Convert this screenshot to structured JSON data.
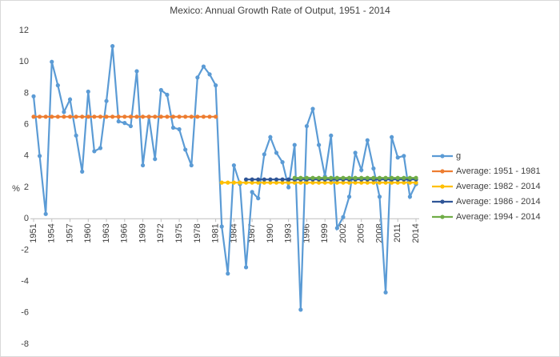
{
  "chart_data": {
    "type": "line",
    "title": "Mexico: Annual Growth Rate of Output, 1951 - 2014",
    "y_label": "%",
    "x": [
      1951,
      1952,
      1953,
      1954,
      1955,
      1956,
      1957,
      1958,
      1959,
      1960,
      1961,
      1962,
      1963,
      1964,
      1965,
      1966,
      1967,
      1968,
      1969,
      1970,
      1971,
      1972,
      1973,
      1974,
      1975,
      1976,
      1977,
      1978,
      1979,
      1980,
      1981,
      1982,
      1983,
      1984,
      1985,
      1986,
      1987,
      1988,
      1989,
      1990,
      1991,
      1992,
      1993,
      1994,
      1995,
      1996,
      1997,
      1998,
      1999,
      2000,
      2001,
      2002,
      2003,
      2004,
      2005,
      2006,
      2007,
      2008,
      2009,
      2010,
      2011,
      2012,
      2013,
      2014
    ],
    "xlim": [
      1951,
      2014
    ],
    "xticks": [
      1951,
      1954,
      1957,
      1960,
      1963,
      1966,
      1969,
      1972,
      1975,
      1978,
      1981,
      1984,
      1987,
      1990,
      1993,
      1996,
      1999,
      2002,
      2005,
      2008,
      2011,
      2014
    ],
    "ylim": [
      -8,
      12
    ],
    "yticks": [
      -8,
      -6,
      -4,
      -2,
      0,
      2,
      4,
      6,
      8,
      10,
      12
    ],
    "grid": false,
    "legend": "right",
    "series": [
      {
        "name": "g",
        "color": "#5b9bd5",
        "values": [
          7.8,
          4.0,
          0.3,
          10.0,
          8.5,
          6.8,
          7.6,
          5.3,
          3.0,
          8.1,
          4.3,
          4.5,
          7.5,
          11.0,
          6.2,
          6.1,
          5.9,
          9.4,
          3.4,
          6.5,
          3.8,
          8.2,
          7.9,
          5.8,
          5.7,
          4.4,
          3.4,
          9.0,
          9.7,
          9.2,
          8.5,
          -0.5,
          -3.5,
          3.4,
          2.2,
          -3.1,
          1.7,
          1.3,
          4.1,
          5.2,
          4.2,
          3.6,
          2.0,
          4.7,
          -5.8,
          5.9,
          7.0,
          4.7,
          2.7,
          5.3,
          -0.6,
          0.1,
          1.4,
          4.2,
          3.1,
          5.0,
          3.2,
          1.4,
          -4.7,
          5.2,
          3.9,
          4.0,
          1.4,
          2.2
        ]
      },
      {
        "name": "Average: 1951 - 1981",
        "color": "#ed7d31",
        "values": [
          6.5,
          6.5,
          6.5,
          6.5,
          6.5,
          6.5,
          6.5,
          6.5,
          6.5,
          6.5,
          6.5,
          6.5,
          6.5,
          6.5,
          6.5,
          6.5,
          6.5,
          6.5,
          6.5,
          6.5,
          6.5,
          6.5,
          6.5,
          6.5,
          6.5,
          6.5,
          6.5,
          6.5,
          6.5,
          6.5,
          6.5,
          null,
          null,
          null,
          null,
          null,
          null,
          null,
          null,
          null,
          null,
          null,
          null,
          null,
          null,
          null,
          null,
          null,
          null,
          null,
          null,
          null,
          null,
          null,
          null,
          null,
          null,
          null,
          null,
          null,
          null,
          null,
          null,
          null
        ]
      },
      {
        "name": "Average: 1982 - 2014",
        "color": "#ffc000",
        "values": [
          null,
          null,
          null,
          null,
          null,
          null,
          null,
          null,
          null,
          null,
          null,
          null,
          null,
          null,
          null,
          null,
          null,
          null,
          null,
          null,
          null,
          null,
          null,
          null,
          null,
          null,
          null,
          null,
          null,
          null,
          null,
          2.3,
          2.3,
          2.3,
          2.3,
          2.3,
          2.3,
          2.3,
          2.3,
          2.3,
          2.3,
          2.3,
          2.3,
          2.3,
          2.3,
          2.3,
          2.3,
          2.3,
          2.3,
          2.3,
          2.3,
          2.3,
          2.3,
          2.3,
          2.3,
          2.3,
          2.3,
          2.3,
          2.3,
          2.3,
          2.3,
          2.3,
          2.3,
          2.3
        ]
      },
      {
        "name": "Average: 1986 - 2014",
        "color": "#2f5597",
        "values": [
          null,
          null,
          null,
          null,
          null,
          null,
          null,
          null,
          null,
          null,
          null,
          null,
          null,
          null,
          null,
          null,
          null,
          null,
          null,
          null,
          null,
          null,
          null,
          null,
          null,
          null,
          null,
          null,
          null,
          null,
          null,
          null,
          null,
          null,
          null,
          2.5,
          2.5,
          2.5,
          2.5,
          2.5,
          2.5,
          2.5,
          2.5,
          2.5,
          2.5,
          2.5,
          2.5,
          2.5,
          2.5,
          2.5,
          2.5,
          2.5,
          2.5,
          2.5,
          2.5,
          2.5,
          2.5,
          2.5,
          2.5,
          2.5,
          2.5,
          2.5,
          2.5,
          2.5
        ]
      },
      {
        "name": "Average: 1994 - 2014",
        "color": "#70ad47",
        "values": [
          null,
          null,
          null,
          null,
          null,
          null,
          null,
          null,
          null,
          null,
          null,
          null,
          null,
          null,
          null,
          null,
          null,
          null,
          null,
          null,
          null,
          null,
          null,
          null,
          null,
          null,
          null,
          null,
          null,
          null,
          null,
          null,
          null,
          null,
          null,
          null,
          null,
          null,
          null,
          null,
          null,
          null,
          null,
          2.6,
          2.6,
          2.6,
          2.6,
          2.6,
          2.6,
          2.6,
          2.6,
          2.6,
          2.6,
          2.6,
          2.6,
          2.6,
          2.6,
          2.6,
          2.6,
          2.6,
          2.6,
          2.6,
          2.6,
          2.6
        ]
      }
    ]
  }
}
